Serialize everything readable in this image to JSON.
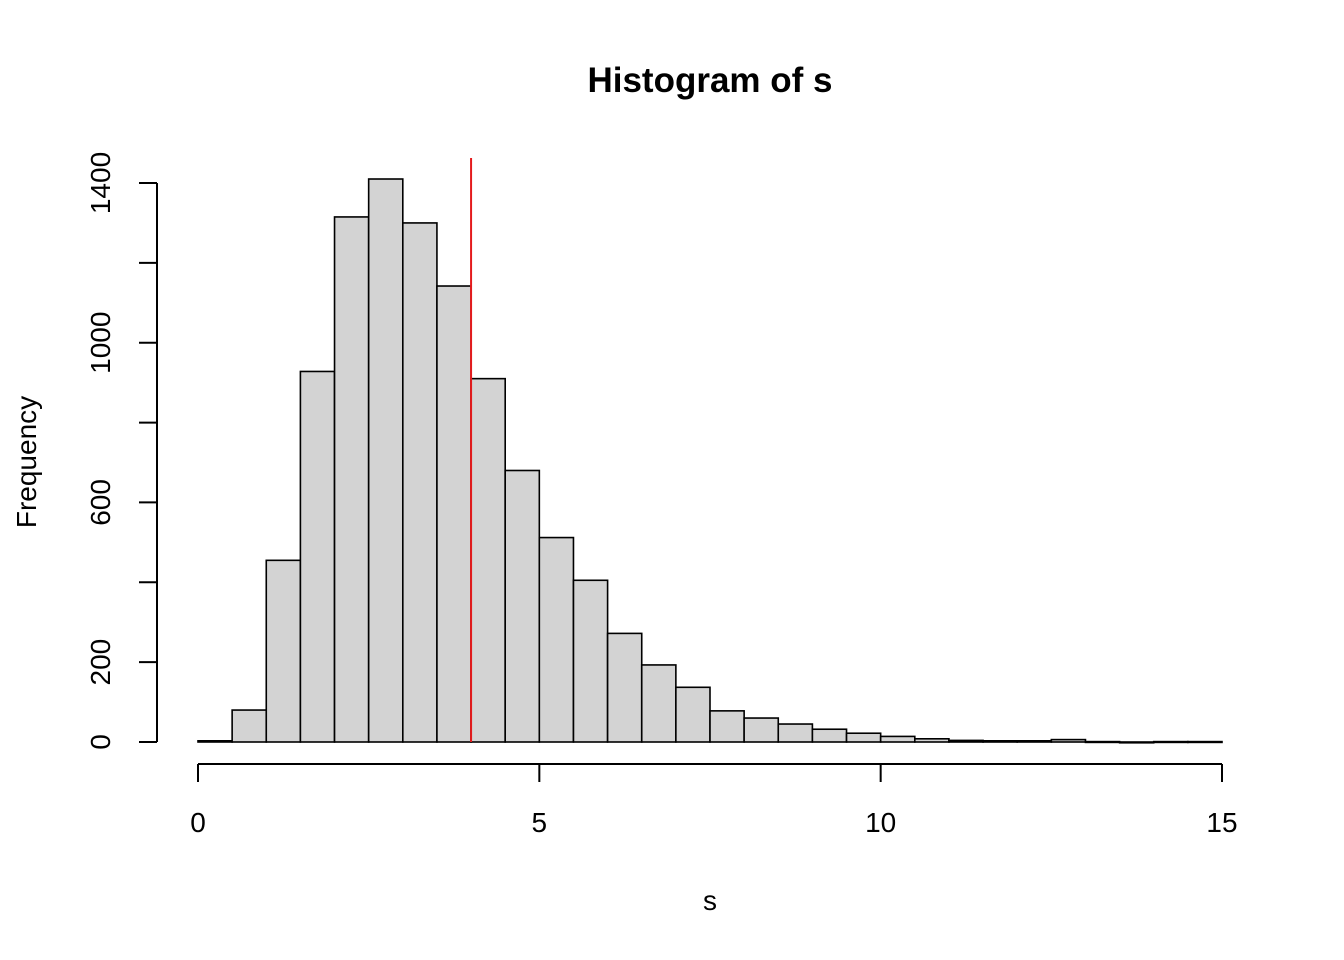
{
  "chart_data": {
    "type": "bar",
    "title": "Histogram of s",
    "xlabel": "s",
    "ylabel": "Frequency",
    "bin_width": 0.5,
    "bins_start": [
      0,
      0.5,
      1,
      1.5,
      2,
      2.5,
      3,
      3.5,
      4,
      4.5,
      5,
      5.5,
      6,
      6.5,
      7,
      7.5,
      8,
      8.5,
      9,
      9.5,
      10,
      10.5,
      11,
      11.5,
      12,
      12.5,
      13,
      13.5,
      14,
      14.5
    ],
    "values": [
      3,
      80,
      455,
      928,
      1315,
      1410,
      1300,
      1142,
      910,
      680,
      512,
      405,
      272,
      193,
      137,
      78,
      60,
      45,
      32,
      22,
      14,
      8,
      4,
      3,
      3,
      6,
      1,
      0,
      1,
      1
    ],
    "xlim": [
      0,
      15
    ],
    "ylim": [
      0,
      1400
    ],
    "x_ticks": [
      0,
      5,
      10,
      15
    ],
    "x_tick_labels": [
      "0",
      "5",
      "10",
      "15"
    ],
    "y_ticks": [
      0,
      200,
      400,
      600,
      800,
      1000,
      1200,
      1400
    ],
    "y_tick_labels": [
      "0",
      "200",
      "",
      "600",
      "",
      "1000",
      "",
      "1400"
    ],
    "reference_line": {
      "x": 4,
      "color": "#e41a1c"
    },
    "bar_fill": "#d3d3d3",
    "grid": false
  }
}
